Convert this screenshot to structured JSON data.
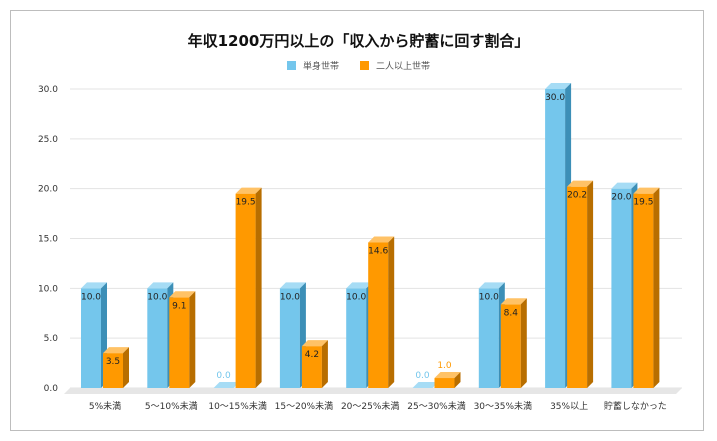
{
  "chart_data": {
    "type": "bar",
    "title": "年収1200万円以上の「収入から貯蓄に回す割合」",
    "categories": [
      "5%未満",
      "5〜10%未満",
      "10〜15%未満",
      "15〜20%未満",
      "20〜25%未満",
      "25〜30%未満",
      "30〜35%未満",
      "35%以上",
      "貯蓄しなかった"
    ],
    "series": [
      {
        "name": "単身世帯",
        "color": "#74c6ec",
        "values": [
          10.0,
          10.0,
          0.0,
          10.0,
          10.0,
          0.0,
          10.0,
          30.0,
          20.0
        ]
      },
      {
        "name": "二人以上世帯",
        "color": "#ff9900",
        "values": [
          3.5,
          9.1,
          19.5,
          4.2,
          14.6,
          1.0,
          8.4,
          20.2,
          19.5
        ]
      }
    ],
    "ylim": [
      0,
      30
    ],
    "yticks": [
      "0.0",
      "5.0",
      "10.0",
      "15.0",
      "20.0",
      "25.0",
      "30.0"
    ],
    "grid": true,
    "legend": "top",
    "style": "3d-column"
  }
}
